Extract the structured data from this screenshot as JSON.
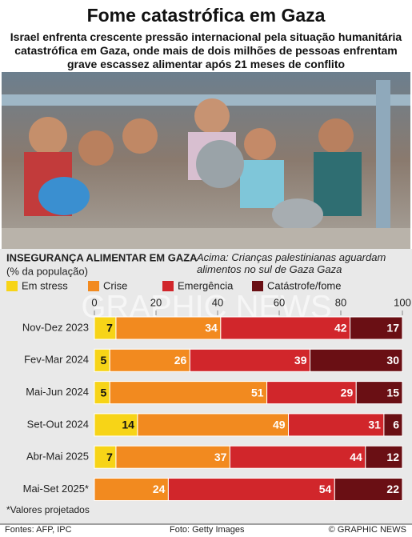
{
  "title": "Fome catastrófica em Gaza",
  "subtitle": "Israel enfrenta crescente pressão internacional pela situação humanitária catastrófica em Gaza, onde mais de dois milhões de pessoas enfrentam grave escassez alimentar após 21 meses de conflito",
  "photo_caption": "Acima: Crianças palestinianas aguardam alimentos no sul de Gaza Gaza",
  "watermark": "GRAPHIC NEWS",
  "chart_data": {
    "type": "bar",
    "orientation": "horizontal",
    "stacked": true,
    "title": "INSEGURANÇA ALIMENTAR EM GAZA",
    "subtitle": "(% da população)",
    "categories": [
      "Nov-Dez 2023",
      "Fev-Mar 2024",
      "Mai-Jun 2024",
      "Set-Out 2024",
      "Abr-Mai 2025",
      "Mai-Set 2025*"
    ],
    "series": [
      {
        "name": "Em stress",
        "color": "#f7d417",
        "values": [
          7,
          5,
          5,
          14,
          7,
          null
        ]
      },
      {
        "name": "Crise",
        "color": "#f28a1f",
        "values": [
          34,
          26,
          51,
          49,
          37,
          24
        ]
      },
      {
        "name": "Emergência",
        "color": "#d1262b",
        "values": [
          42,
          39,
          29,
          31,
          44,
          54
        ]
      },
      {
        "name": "Catástrofe/fome",
        "color": "#6a0f14",
        "values": [
          17,
          30,
          15,
          6,
          12,
          22
        ]
      }
    ],
    "xlim": [
      0,
      100
    ],
    "xticks": [
      0,
      20,
      40,
      60,
      80,
      100
    ],
    "note": "*Valores projetados"
  },
  "footer": {
    "sources": "Fontes: AFP, IPC",
    "photo_credit": "Foto: Getty Images",
    "copyright": "© GRAPHIC NEWS"
  }
}
